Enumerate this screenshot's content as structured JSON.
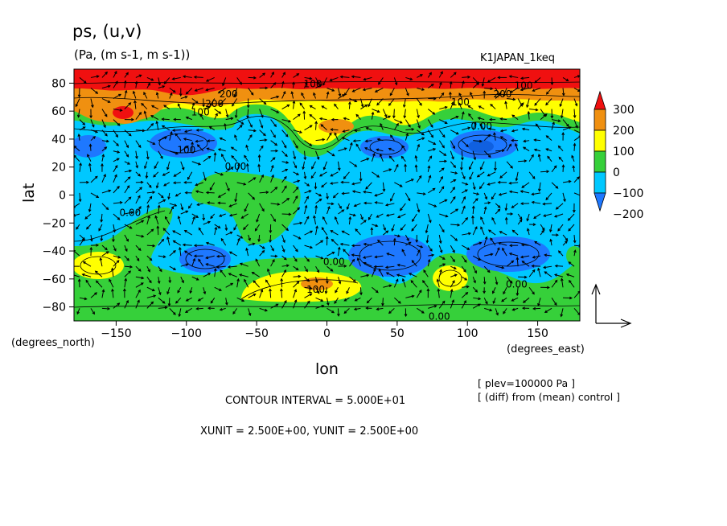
{
  "chart_data": {
    "type": "heatmap",
    "title": "ps, (u,v)",
    "subtitle": "(Pa, (m s-1, m s-1))",
    "experiment": "K1JAPAN_1keq",
    "xlabel": "lon",
    "ylabel": "lat",
    "x_unit": "(degrees_east)",
    "y_unit": "(degrees_north)",
    "xlim": [
      -180,
      180
    ],
    "ylim": [
      -90,
      90
    ],
    "x_ticks": [
      -150,
      -100,
      -50,
      0,
      50,
      100,
      150
    ],
    "y_ticks": [
      80,
      60,
      40,
      20,
      0,
      -20,
      -40,
      -60,
      -80
    ],
    "colorbar": {
      "levels": [
        -200,
        -100,
        0,
        100,
        200,
        300
      ],
      "labels": [
        "300",
        "200",
        "100",
        "0",
        "−100",
        "−200"
      ],
      "colors": [
        "#1e78ff",
        "#00c8ff",
        "#36d03a",
        "#ffff00",
        "#f09010",
        "#f01010"
      ]
    },
    "contour_labels": [
      {
        "text": "100",
        "lon": -10,
        "lat": 77
      },
      {
        "text": "100",
        "lon": 140,
        "lat": 76
      },
      {
        "text": "200",
        "lon": -70,
        "lat": 70
      },
      {
        "text": "200",
        "lon": 125,
        "lat": 70
      },
      {
        "text": "100",
        "lon": 95,
        "lat": 64
      },
      {
        "text": "200",
        "lon": -80,
        "lat": 63
      },
      {
        "text": "100",
        "lon": -90,
        "lat": 57
      },
      {
        "text": "0.00",
        "lon": 110,
        "lat": 47
      },
      {
        "text": "100",
        "lon": -100,
        "lat": 30
      },
      {
        "text": "0.00",
        "lon": -65,
        "lat": 18
      },
      {
        "text": "0.00",
        "lon": -140,
        "lat": -15
      },
      {
        "text": "0.00",
        "lon": 5,
        "lat": -50
      },
      {
        "text": "100",
        "lon": -8,
        "lat": -70
      },
      {
        "text": "0.00",
        "lon": 135,
        "lat": -66
      },
      {
        "text": "0.00",
        "lon": 80,
        "lat": -89
      }
    ],
    "annotations": {
      "contour_interval": "CONTOUR INTERVAL = 5.000E+01",
      "units": "XUNIT = 2.500E+00, YUNIT = 2.500E+00",
      "plev": "[ plev=100000 Pa ]",
      "diff": "[ (diff) from (mean) control ]"
    }
  }
}
